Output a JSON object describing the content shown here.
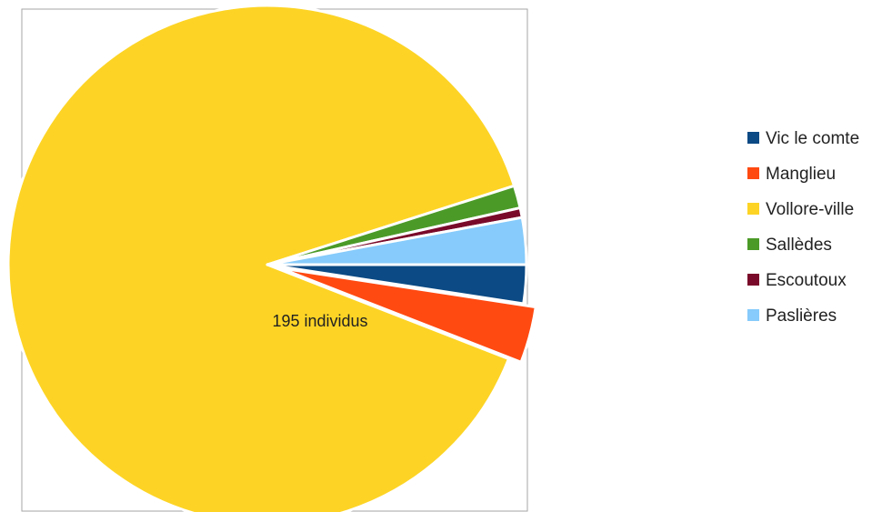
{
  "chart_data": {
    "type": "pie",
    "title": "",
    "categories": [
      "Vic le comte",
      "Manglieu",
      "Vollore-ville",
      "Sallèdes",
      "Escoutoux",
      "Paslières"
    ],
    "values": [
      2.4,
      3.5,
      88.8,
      1.4,
      0.6,
      2.9
    ],
    "unit": "%",
    "colors": [
      "#0b4a84",
      "#ff4a12",
      "#fdd425",
      "#4b9a28",
      "#7a0a2a",
      "#86cbfb"
    ],
    "exploded": "Manglieu",
    "label": "195 individus",
    "legend_position": "right",
    "border": true
  }
}
